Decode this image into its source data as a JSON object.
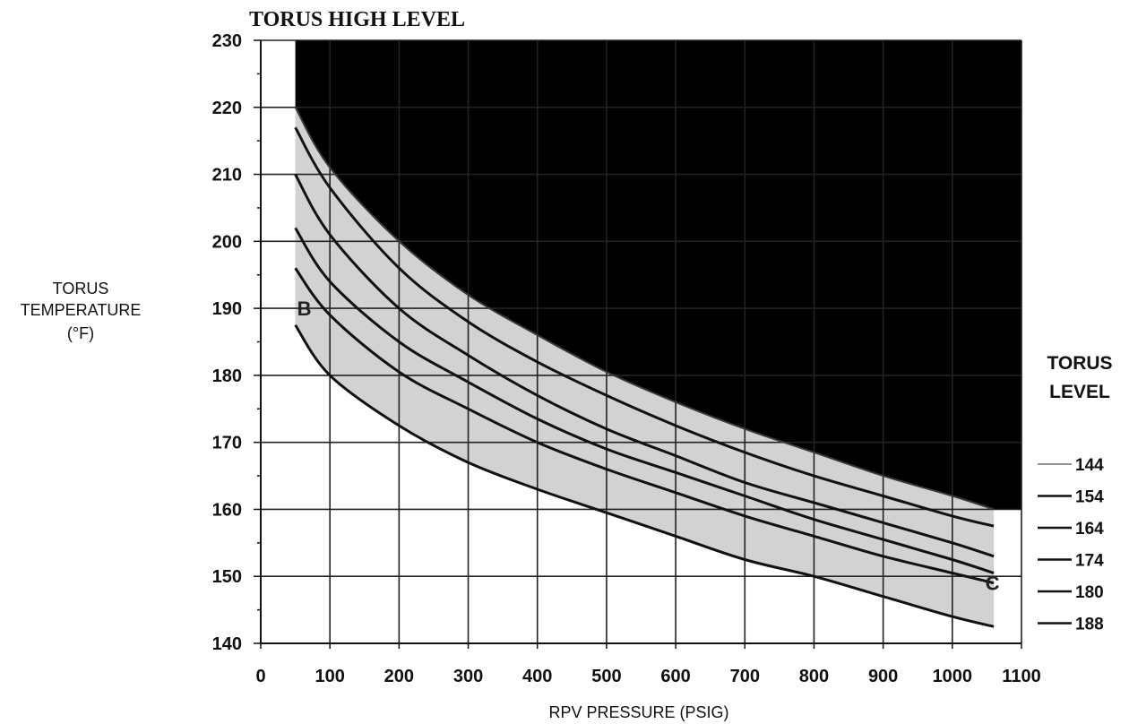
{
  "chart_data": {
    "type": "line",
    "title": "TORUS HIGH LEVEL",
    "xlabel": "RPV PRESSURE (PSIG)",
    "ylabel_lines": [
      "TORUS",
      "TEMPERATURE",
      "(°F)"
    ],
    "xlim": [
      0,
      1100
    ],
    "ylim": [
      140,
      230
    ],
    "x_ticks": [
      "0",
      "100",
      "200",
      "300",
      "400",
      "500",
      "600",
      "700",
      "800",
      "900",
      "1000",
      "1100"
    ],
    "y_ticks": [
      "140",
      "150",
      "160",
      "170",
      "180",
      "190",
      "200",
      "210",
      "220",
      "230"
    ],
    "grid": true,
    "legend_title_lines": [
      "TORUS",
      "LEVEL"
    ],
    "legend_position": "right",
    "unsafe_region_color": "#000000",
    "shaded_region_color": "#d2d2d2",
    "curve_color": "#111111",
    "region_labels": [
      {
        "text": "B",
        "x": 63,
        "y": 190
      },
      {
        "text": "C",
        "x": 1058,
        "y": 149
      }
    ],
    "series": [
      {
        "name": "144",
        "x": [
          50,
          100,
          200,
          300,
          400,
          500,
          600,
          700,
          800,
          900,
          1000,
          1060
        ],
        "y": [
          220,
          211,
          200,
          192,
          186,
          180.5,
          176,
          172,
          168.5,
          165,
          162,
          160
        ]
      },
      {
        "name": "154",
        "x": [
          50,
          100,
          200,
          300,
          400,
          500,
          600,
          700,
          800,
          900,
          1000,
          1060
        ],
        "y": [
          217,
          208,
          196,
          188,
          182,
          177,
          172.5,
          168.5,
          165,
          162,
          159,
          157.5
        ]
      },
      {
        "name": "164",
        "x": [
          50,
          100,
          200,
          300,
          400,
          500,
          600,
          700,
          800,
          900,
          1000,
          1060
        ],
        "y": [
          210,
          201,
          190,
          183,
          177,
          172,
          168,
          164,
          161,
          158,
          155,
          153
        ]
      },
      {
        "name": "174",
        "x": [
          50,
          100,
          200,
          300,
          400,
          500,
          600,
          700,
          800,
          900,
          1000,
          1060
        ],
        "y": [
          202,
          194,
          185,
          179,
          173.5,
          169,
          165.5,
          162,
          158.5,
          155.5,
          152.5,
          150.5
        ]
      },
      {
        "name": "180",
        "x": [
          50,
          100,
          200,
          300,
          400,
          500,
          600,
          700,
          800,
          900,
          1000,
          1060
        ],
        "y": [
          196,
          189,
          180.5,
          175,
          170,
          166,
          162.5,
          159,
          156,
          153,
          150.5,
          149
        ]
      },
      {
        "name": "188",
        "x": [
          50,
          100,
          200,
          300,
          400,
          500,
          600,
          700,
          800,
          900,
          1000,
          1060
        ],
        "y": [
          187.5,
          180,
          172.5,
          167,
          163,
          159.5,
          156,
          152.5,
          150,
          147,
          144,
          142.5
        ]
      }
    ]
  }
}
